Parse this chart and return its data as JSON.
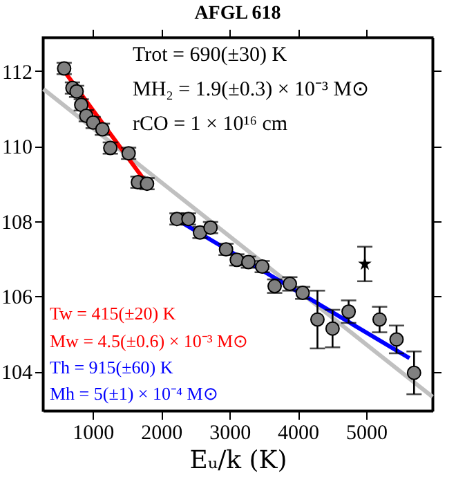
{
  "chart_data": {
    "type": "scatter",
    "title": "AFGL 618",
    "xlabel": "Eᵤ/k (K)",
    "xlim": [
      270,
      5970
    ],
    "ylim": [
      102.95,
      112.9
    ],
    "xticks": [
      1000,
      2000,
      3000,
      4000,
      5000
    ],
    "yticks": [
      104,
      106,
      108,
      110,
      112
    ],
    "grid": false,
    "series": [
      {
        "marker": "circle",
        "color": "#808080",
        "x": [
          582,
          703,
          764,
          832,
          905,
          1006,
          1141,
          1257,
          1525,
          1661,
          1794,
          2232,
          2400,
          2569,
          2723,
          2950,
          3107,
          3277,
          3479,
          3661,
          3883,
          4071,
          4287,
          4508,
          4743,
          5196,
          5444,
          5700
        ],
        "values": [
          112.07,
          111.55,
          111.46,
          111.1,
          110.81,
          110.63,
          110.45,
          109.95,
          109.81,
          109.04,
          109.0,
          108.06,
          108.06,
          107.7,
          107.83,
          107.25,
          106.97,
          106.91,
          106.79,
          106.27,
          106.33,
          106.09,
          105.38,
          105.14,
          105.59,
          105.38,
          104.85,
          103.96
        ],
        "errors": [
          0.15,
          0.15,
          0.15,
          0.15,
          0.15,
          0.15,
          0.15,
          0.15,
          0.15,
          0.15,
          0.15,
          0.15,
          0.15,
          0.15,
          0.15,
          0.15,
          0.15,
          0.15,
          0.15,
          0.18,
          0.18,
          0.16,
          0.77,
          0.5,
          0.3,
          0.34,
          0.37,
          0.57
        ]
      },
      {
        "marker": "star",
        "color": "#000000",
        "x": [
          4980
        ],
        "values": [
          106.86
        ],
        "errors": [
          0.46
        ]
      },
      {
        "type": "line",
        "color": "#c0c0c0",
        "x": [
          279,
          5970
        ],
        "values": [
          111.52,
          103.32
        ]
      },
      {
        "type": "line",
        "color": "#ff0000",
        "x": [
          582,
          1794
        ],
        "values": [
          112.0,
          109.0
        ]
      },
      {
        "type": "line",
        "color": "#0000ff",
        "x": [
          2232,
          5633
        ],
        "values": [
          108.04,
          104.35
        ]
      }
    ],
    "annotations": [
      "Trot = 690(±30) K",
      "MH₂ = 1.9(±0.3) × 10⁻³ M⊙",
      "rCO = 1 × 10¹⁶ cm",
      "Tw = 415(±20) K",
      "Mw = 4.5(±0.6) × 10⁻³ M⊙",
      "Th = 915(±60) K",
      "Mh = 5(±1) × 10⁻⁴ M⊙"
    ]
  }
}
